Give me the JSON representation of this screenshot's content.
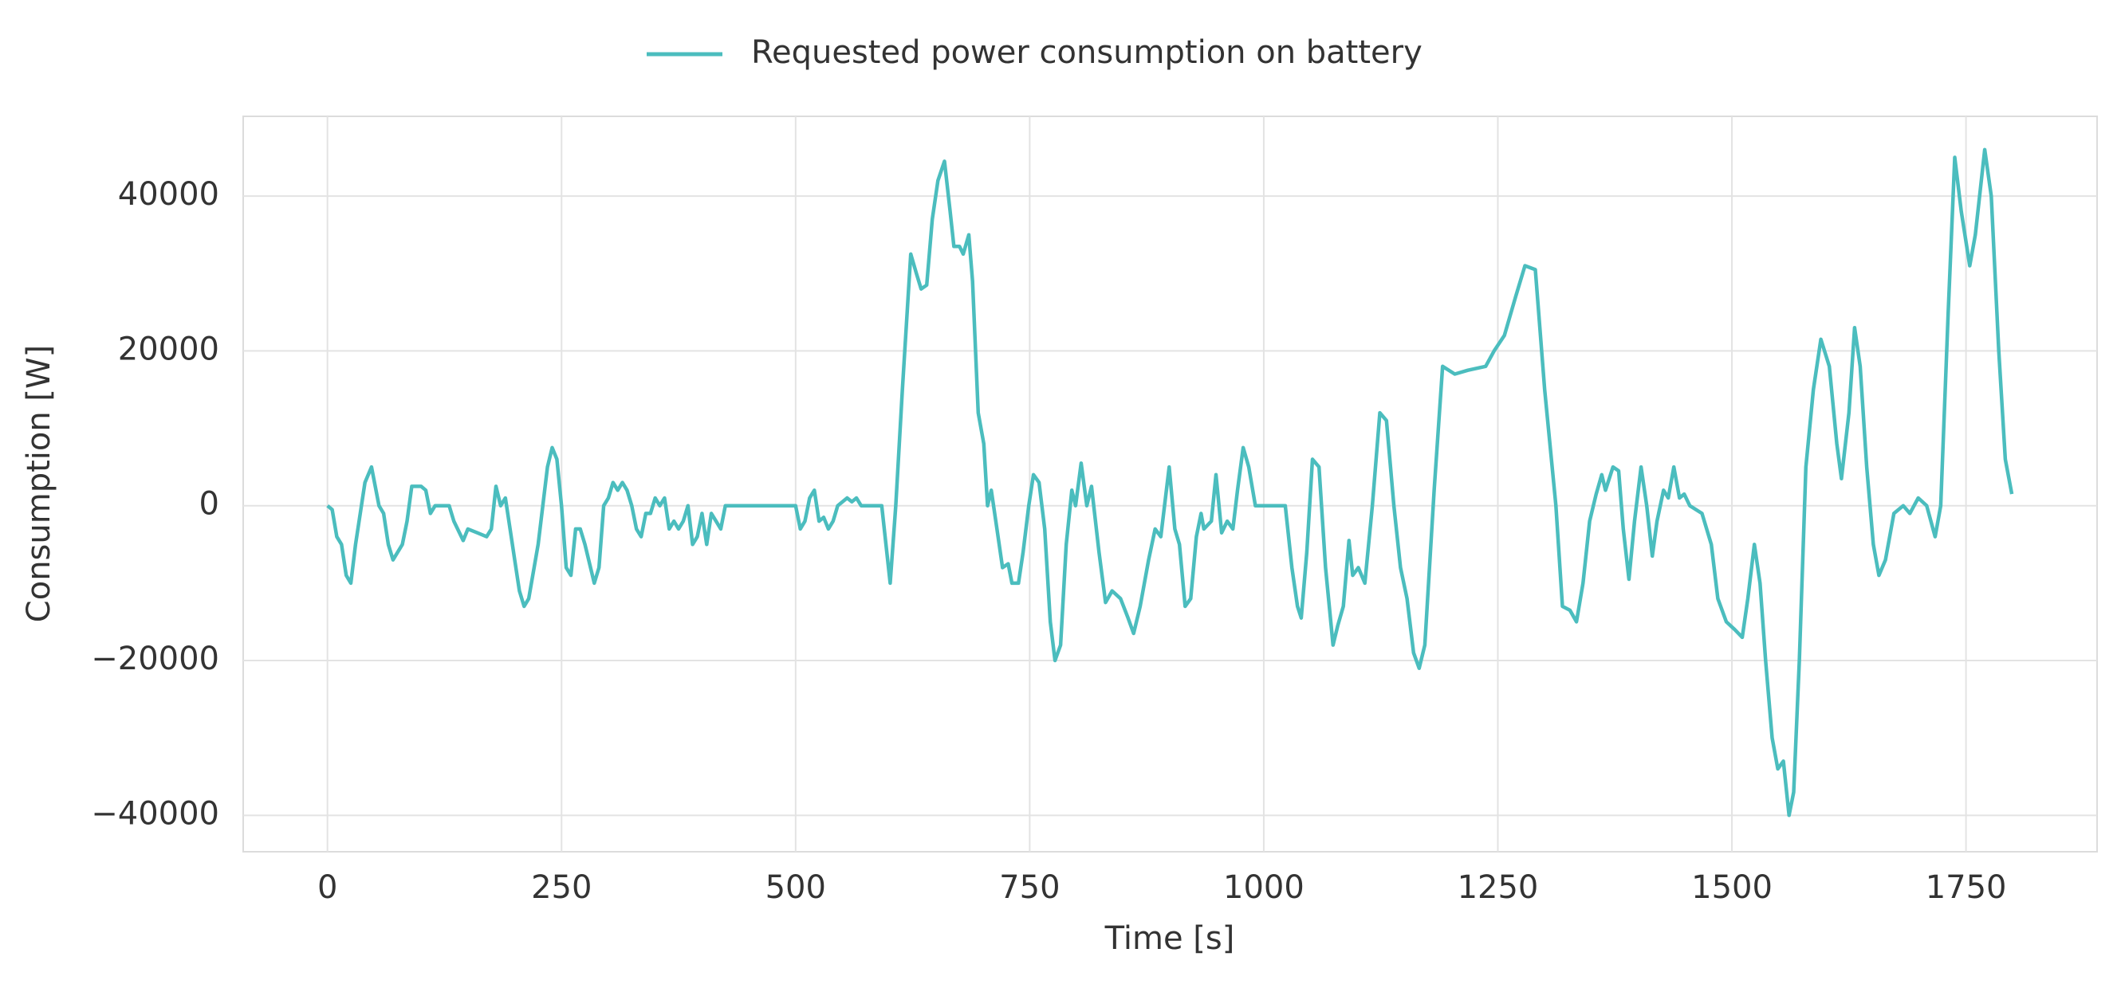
{
  "chart_data": {
    "type": "line",
    "xlabel": "Time [s]",
    "ylabel": "Consumption [W]",
    "xlim": [
      -90,
      1890
    ],
    "ylim": [
      -44700,
      50300
    ],
    "xticks": [
      0,
      250,
      500,
      750,
      1000,
      1250,
      1500,
      1750
    ],
    "yticks": [
      {
        "value": -40000,
        "label": "−40000"
      },
      {
        "value": -20000,
        "label": "−20000"
      },
      0,
      20000,
      40000
    ],
    "grid": true,
    "x": [
      0,
      5,
      10,
      15,
      20,
      25,
      30,
      35,
      40,
      47,
      55,
      60,
      65,
      70,
      80,
      85,
      90,
      100,
      105,
      110,
      115,
      130,
      135,
      145,
      150,
      160,
      170,
      175,
      180,
      185,
      190,
      195,
      200,
      205,
      210,
      215,
      225,
      235,
      240,
      245,
      250,
      255,
      260,
      265,
      270,
      275,
      285,
      290,
      295,
      300,
      305,
      310,
      315,
      320,
      325,
      330,
      335,
      340,
      345,
      350,
      355,
      360,
      365,
      370,
      375,
      380,
      385,
      390,
      395,
      400,
      405,
      410,
      415,
      420,
      425,
      440,
      500,
      505,
      510,
      515,
      520,
      525,
      530,
      535,
      540,
      545,
      555,
      560,
      565,
      570,
      592,
      601,
      607,
      614,
      623,
      629,
      634,
      640,
      646,
      652,
      659,
      665,
      669,
      675,
      679,
      685,
      689,
      695,
      701,
      705,
      709,
      715,
      721,
      727,
      731,
      738,
      743,
      749,
      754,
      760,
      766,
      772,
      777,
      783,
      789,
      795,
      799,
      805,
      811,
      816,
      824,
      831,
      838,
      847,
      855,
      861,
      868,
      877,
      884,
      890,
      896,
      899,
      905,
      910,
      916,
      922,
      928,
      933,
      936,
      944,
      949,
      955,
      961,
      967,
      972,
      978,
      984,
      991,
      1023,
      1030,
      1036,
      1040,
      1046,
      1052,
      1059,
      1066,
      1074,
      1079,
      1085,
      1091,
      1095,
      1101,
      1108,
      1116,
      1124,
      1131,
      1139,
      1146,
      1153,
      1160,
      1166,
      1172,
      1182,
      1191,
      1204,
      1218,
      1237,
      1246,
      1257,
      1269,
      1279,
      1290,
      1300,
      1312,
      1319,
      1327,
      1334,
      1341,
      1348,
      1355,
      1361,
      1365,
      1373,
      1379,
      1384,
      1390,
      1396,
      1403,
      1409,
      1415,
      1420,
      1427,
      1432,
      1438,
      1444,
      1449,
      1455,
      1468,
      1478,
      1485,
      1494,
      1503,
      1511,
      1517,
      1524,
      1530,
      1536,
      1543,
      1549,
      1555,
      1561,
      1566,
      1572,
      1579,
      1587,
      1595,
      1604,
      1612,
      1617,
      1625,
      1631,
      1637,
      1644,
      1651,
      1657,
      1664,
      1673,
      1683,
      1690,
      1699,
      1708,
      1717,
      1723,
      1731,
      1738,
      1745,
      1754,
      1760,
      1770,
      1777,
      1785,
      1792,
      1799
    ],
    "series": [
      {
        "name": "Requested power consumption on battery",
        "color": "#4bbdbe",
        "values": [
          0,
          -500,
          -4000,
          -5000,
          -9000,
          -10000,
          -5000,
          -1000,
          3000,
          5000,
          0,
          -1000,
          -5000,
          -7000,
          -5000,
          -2000,
          2500,
          2500,
          2000,
          -1000,
          0,
          0,
          -2000,
          -4500,
          -3000,
          -3500,
          -4000,
          -3000,
          2500,
          0,
          1000,
          -3000,
          -7000,
          -11000,
          -13000,
          -12000,
          -5000,
          5000,
          7500,
          6000,
          0,
          -8000,
          -9000,
          -3000,
          -3000,
          -5000,
          -10000,
          -8000,
          0,
          1000,
          3000,
          2000,
          3000,
          2000,
          0,
          -3000,
          -4000,
          -1000,
          -1000,
          1000,
          0,
          1000,
          -3000,
          -2000,
          -3000,
          -2000,
          0,
          -5000,
          -4000,
          -1000,
          -5000,
          -1000,
          -2000,
          -3000,
          0,
          0,
          0,
          -3000,
          -2000,
          1000,
          2000,
          -2000,
          -1500,
          -3000,
          -2000,
          0,
          1000,
          500,
          1000,
          0,
          0,
          -10000,
          0,
          15000,
          32500,
          30000,
          28000,
          28500,
          37000,
          42000,
          44500,
          38000,
          33500,
          33500,
          32500,
          35000,
          29000,
          12000,
          8000,
          0,
          2000,
          -3000,
          -8000,
          -7500,
          -10000,
          -10000,
          -6000,
          0,
          4000,
          3000,
          -3000,
          -15000,
          -20000,
          -18000,
          -5000,
          2000,
          0,
          5500,
          0,
          2500,
          -6000,
          -12500,
          -11000,
          -12000,
          -14500,
          -16500,
          -13000,
          -7000,
          -3000,
          -4000,
          2000,
          5000,
          -3000,
          -5000,
          -13000,
          -12000,
          -4000,
          -1000,
          -3000,
          -2000,
          4000,
          -3500,
          -2000,
          -3000,
          2000,
          7500,
          5000,
          0,
          0,
          -8000,
          -13000,
          -14500,
          -6000,
          6000,
          5000,
          -8000,
          -18000,
          -15500,
          -13000,
          -4500,
          -9000,
          -8000,
          -10000,
          0,
          12000,
          11000,
          0,
          -8000,
          -12000,
          -19000,
          -21000,
          -18000,
          2000,
          18000,
          17000,
          17500,
          18000,
          20000,
          22000,
          27000,
          31000,
          30500,
          15000,
          0,
          -13000,
          -13500,
          -15000,
          -10000,
          -2000,
          1500,
          4000,
          2000,
          5000,
          4500,
          -3000,
          -9500,
          -2000,
          5000,
          0,
          -6500,
          -2000,
          2000,
          1000,
          5000,
          1000,
          1500,
          0,
          -1000,
          -5000,
          -12000,
          -15000,
          -16000,
          -17000,
          -12000,
          -5000,
          -10000,
          -20000,
          -30000,
          -34000,
          -33000,
          -40000,
          -37000,
          -20000,
          5000,
          15000,
          21500,
          18000,
          8000,
          3500,
          12000,
          23000,
          18000,
          5000,
          -5000,
          -9000,
          -7000,
          -1000,
          0,
          -1000,
          1000,
          0,
          -4000,
          0,
          25000,
          45000,
          38000,
          31000,
          35000,
          46000,
          40000,
          20000,
          6000,
          1500
        ]
      }
    ]
  }
}
